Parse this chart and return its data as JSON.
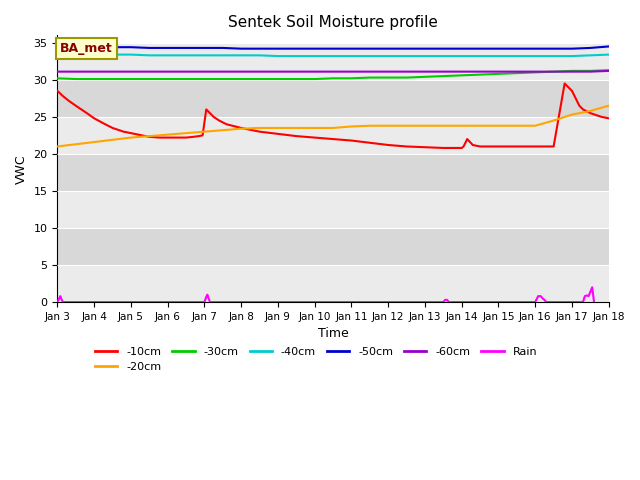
{
  "title": "Sentek Soil Moisture profile",
  "xlabel": "Time",
  "ylabel": "VWC",
  "ylim": [
    0,
    36
  ],
  "yticks": [
    0,
    5,
    10,
    15,
    20,
    25,
    30,
    35
  ],
  "xlim": [
    0,
    15
  ],
  "xtick_labels": [
    "Jan 3",
    "Jan 4",
    "Jan 5",
    "Jan 6",
    "Jan 7",
    "Jan 8",
    "Jan 9",
    "Jan 10",
    "Jan 11",
    "Jan 12",
    "Jan 13",
    "Jan 14",
    "Jan 15",
    "Jan 16",
    "Jan 17",
    "Jan 18"
  ],
  "annotation_text": "BA_met",
  "annotation_color": "#8B0000",
  "annotation_bg": "#FFFFCC",
  "annotation_edge": "#999900",
  "bg_color_light": "#EBEBEB",
  "bg_color_dark": "#D8D8D8",
  "line_colors": {
    "-10cm": "#FF0000",
    "-20cm": "#FFA500",
    "-30cm": "#00CC00",
    "-40cm": "#00CCCC",
    "-50cm": "#0000CC",
    "-60cm": "#9900CC",
    "Rain": "#FF00FF"
  },
  "series": {
    "-10cm": {
      "x": [
        0,
        0.15,
        0.3,
        0.5,
        0.8,
        1.0,
        1.3,
        1.5,
        1.8,
        2.0,
        2.3,
        2.5,
        2.8,
        3.0,
        3.3,
        3.5,
        3.7,
        3.85,
        3.95,
        4.05,
        4.15,
        4.25,
        4.4,
        4.6,
        5.0,
        5.5,
        6.0,
        6.5,
        7.0,
        7.5,
        8.0,
        8.5,
        9.0,
        9.5,
        10.0,
        10.5,
        11.0,
        11.05,
        11.1,
        11.15,
        11.3,
        11.5,
        12.0,
        12.5,
        13.0,
        13.5,
        13.8,
        14.0,
        14.1,
        14.2,
        14.3,
        14.5,
        14.8,
        15.0
      ],
      "y": [
        28.5,
        27.8,
        27.2,
        26.5,
        25.5,
        24.8,
        24.0,
        23.5,
        23.0,
        22.8,
        22.5,
        22.3,
        22.2,
        22.2,
        22.2,
        22.2,
        22.3,
        22.4,
        22.5,
        26.0,
        25.5,
        25.0,
        24.5,
        24.0,
        23.5,
        23.0,
        22.7,
        22.4,
        22.2,
        22.0,
        21.8,
        21.5,
        21.2,
        21.0,
        20.9,
        20.8,
        20.8,
        21.0,
        21.5,
        22.0,
        21.2,
        21.0,
        21.0,
        21.0,
        21.0,
        21.0,
        29.5,
        28.5,
        27.5,
        26.5,
        26.0,
        25.5,
        25.0,
        24.8
      ]
    },
    "-20cm": {
      "x": [
        0,
        0.5,
        1.0,
        1.5,
        2.0,
        2.5,
        3.0,
        3.5,
        4.0,
        4.5,
        5.0,
        5.5,
        6.0,
        6.5,
        7.0,
        7.5,
        8.0,
        8.5,
        9.0,
        9.5,
        10.0,
        10.5,
        11.0,
        11.5,
        12.0,
        12.5,
        13.0,
        13.5,
        14.0,
        14.5,
        15.0
      ],
      "y": [
        21.0,
        21.3,
        21.6,
        21.9,
        22.2,
        22.4,
        22.6,
        22.8,
        23.0,
        23.2,
        23.4,
        23.5,
        23.5,
        23.5,
        23.5,
        23.5,
        23.7,
        23.8,
        23.8,
        23.8,
        23.8,
        23.8,
        23.8,
        23.8,
        23.8,
        23.8,
        23.8,
        24.5,
        25.3,
        25.8,
        26.5
      ]
    },
    "-30cm": {
      "x": [
        0,
        0.5,
        1.0,
        1.5,
        2.0,
        2.5,
        3.0,
        3.5,
        4.0,
        4.5,
        5.0,
        5.5,
        6.0,
        6.5,
        7.0,
        7.5,
        8.0,
        8.5,
        9.0,
        9.5,
        10.0,
        10.5,
        11.0,
        11.5,
        12.0,
        12.5,
        13.0,
        13.5,
        14.0,
        14.5,
        15.0
      ],
      "y": [
        30.2,
        30.1,
        30.1,
        30.1,
        30.1,
        30.1,
        30.1,
        30.1,
        30.1,
        30.1,
        30.1,
        30.1,
        30.1,
        30.1,
        30.1,
        30.2,
        30.2,
        30.3,
        30.3,
        30.3,
        30.4,
        30.5,
        30.6,
        30.7,
        30.8,
        30.9,
        31.0,
        31.1,
        31.2,
        31.2,
        31.3
      ]
    },
    "-40cm": {
      "x": [
        0,
        0.5,
        1.0,
        1.5,
        2.0,
        2.5,
        3.0,
        3.5,
        4.0,
        4.5,
        5.0,
        5.5,
        6.0,
        6.5,
        7.0,
        7.5,
        8.0,
        8.5,
        9.0,
        9.5,
        10.0,
        10.5,
        11.0,
        11.5,
        12.0,
        12.5,
        13.0,
        13.5,
        14.0,
        14.5,
        15.0
      ],
      "y": [
        33.7,
        33.6,
        33.5,
        33.4,
        33.4,
        33.3,
        33.3,
        33.3,
        33.3,
        33.3,
        33.3,
        33.3,
        33.2,
        33.2,
        33.2,
        33.2,
        33.2,
        33.2,
        33.2,
        33.2,
        33.2,
        33.2,
        33.2,
        33.2,
        33.2,
        33.2,
        33.2,
        33.2,
        33.2,
        33.3,
        33.4
      ]
    },
    "-50cm": {
      "x": [
        0,
        0.5,
        1.0,
        1.5,
        2.0,
        2.5,
        3.0,
        3.5,
        4.0,
        4.5,
        5.0,
        5.5,
        6.0,
        6.5,
        7.0,
        7.5,
        8.0,
        8.5,
        9.0,
        9.5,
        10.0,
        10.5,
        11.0,
        11.5,
        12.0,
        12.5,
        13.0,
        13.5,
        14.0,
        14.5,
        15.0
      ],
      "y": [
        34.5,
        34.5,
        34.4,
        34.4,
        34.4,
        34.3,
        34.3,
        34.3,
        34.3,
        34.3,
        34.2,
        34.2,
        34.2,
        34.2,
        34.2,
        34.2,
        34.2,
        34.2,
        34.2,
        34.2,
        34.2,
        34.2,
        34.2,
        34.2,
        34.2,
        34.2,
        34.2,
        34.2,
        34.2,
        34.3,
        34.5
      ]
    },
    "-60cm": {
      "x": [
        0,
        0.5,
        1.0,
        1.5,
        2.0,
        2.5,
        3.0,
        3.5,
        4.0,
        4.5,
        5.0,
        5.5,
        6.0,
        6.5,
        7.0,
        7.5,
        8.0,
        8.5,
        9.0,
        9.5,
        10.0,
        10.5,
        11.0,
        11.5,
        12.0,
        12.5,
        13.0,
        13.5,
        14.0,
        14.5,
        15.0
      ],
      "y": [
        31.1,
        31.1,
        31.1,
        31.1,
        31.1,
        31.1,
        31.1,
        31.1,
        31.1,
        31.1,
        31.1,
        31.1,
        31.1,
        31.1,
        31.1,
        31.1,
        31.1,
        31.1,
        31.1,
        31.1,
        31.1,
        31.1,
        31.1,
        31.1,
        31.1,
        31.1,
        31.1,
        31.1,
        31.1,
        31.1,
        31.2
      ]
    },
    "Rain": {
      "x": [
        0.0,
        0.05,
        0.08,
        0.1,
        0.15,
        0.2,
        4.0,
        4.05,
        4.08,
        4.1,
        4.15,
        4.2,
        10.5,
        10.55,
        10.6,
        10.65,
        13.0,
        13.05,
        13.08,
        13.1,
        13.15,
        13.2,
        13.25,
        13.3,
        14.3,
        14.35,
        14.4,
        14.45,
        14.55,
        14.6
      ],
      "y": [
        0.0,
        0.5,
        0.8,
        0.5,
        0.0,
        0.0,
        0.0,
        0.7,
        1.0,
        0.7,
        0.0,
        0.0,
        0.0,
        0.3,
        0.3,
        0.0,
        0.0,
        0.5,
        0.8,
        0.8,
        0.8,
        0.5,
        0.3,
        0.0,
        0.0,
        0.8,
        0.9,
        0.8,
        2.0,
        0.0
      ]
    }
  }
}
